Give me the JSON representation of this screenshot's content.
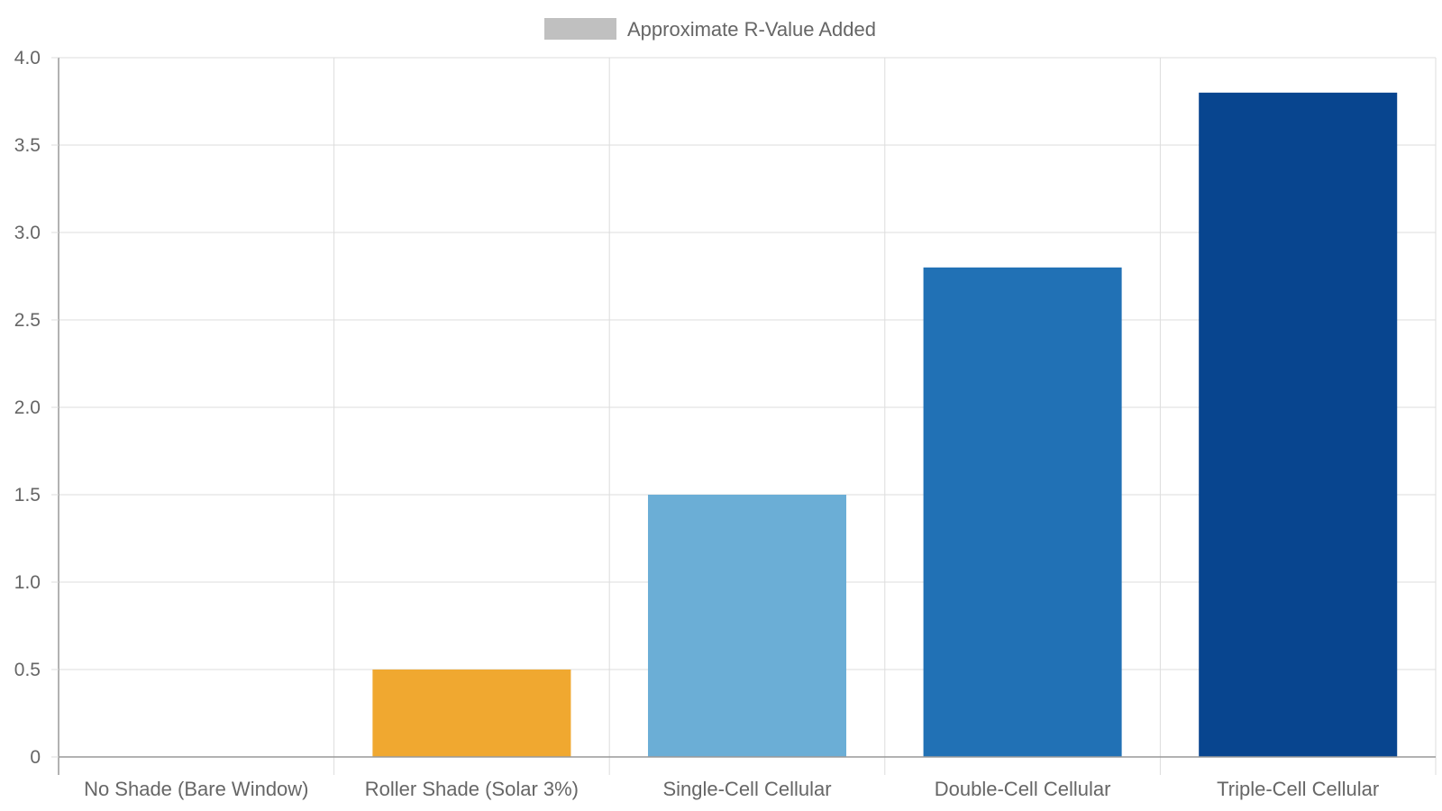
{
  "chart_data": {
    "type": "bar",
    "categories": [
      "No Shade (Bare Window)",
      "Roller Shade (Solar 3%)",
      "Single-Cell Cellular",
      "Double-Cell Cellular",
      "Triple-Cell Cellular"
    ],
    "series": [
      {
        "name": "Approximate R-Value Added",
        "values": [
          0,
          0.5,
          1.5,
          2.8,
          3.8
        ],
        "colors": [
          "#c0c0c0",
          "#f0a830",
          "#6baed6",
          "#2171b5",
          "#08458f"
        ]
      }
    ],
    "ylim": [
      0,
      4.0
    ],
    "y_ticks": [
      "0",
      "0.5",
      "1.0",
      "1.5",
      "2.0",
      "2.5",
      "3.0",
      "3.5",
      "4.0"
    ],
    "grid": true,
    "legend": {
      "position": "top-center",
      "swatch_color": "#c0c0c0"
    }
  }
}
